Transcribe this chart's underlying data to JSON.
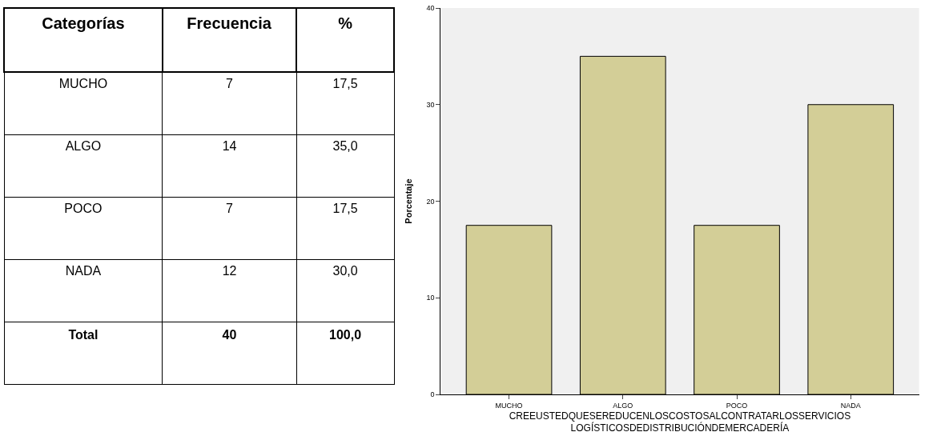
{
  "chart_data": [
    {
      "type": "other",
      "annotations": [
        "Categorías",
        "Frecuencia",
        "%",
        "MUCHO",
        "7",
        "17,5",
        "ALGO",
        "14",
        "35,0",
        "POCO",
        "7",
        "17,5",
        "NADA",
        "12",
        "30,0",
        "Total",
        "40",
        "100,0"
      ]
    },
    {
      "type": "bar",
      "categories": [
        "MUCHO",
        "ALGO",
        "POCO",
        "NADA"
      ],
      "values": [
        17.5,
        35,
        17.5,
        30
      ],
      "color": "#d3ce97",
      "ylim": [
        0,
        40
      ],
      "yticks": [
        0,
        10,
        20,
        30,
        40
      ],
      "ylabel": "Porcentaje",
      "xlabel": "CREEUSTEDQUESEREDUCENLOSCOSTOSALCONTRATARLOSSERVICIOS\nLOGÍSTICOSDEDISTRIBUCIÓNDEMERCADERÍA"
    }
  ]
}
